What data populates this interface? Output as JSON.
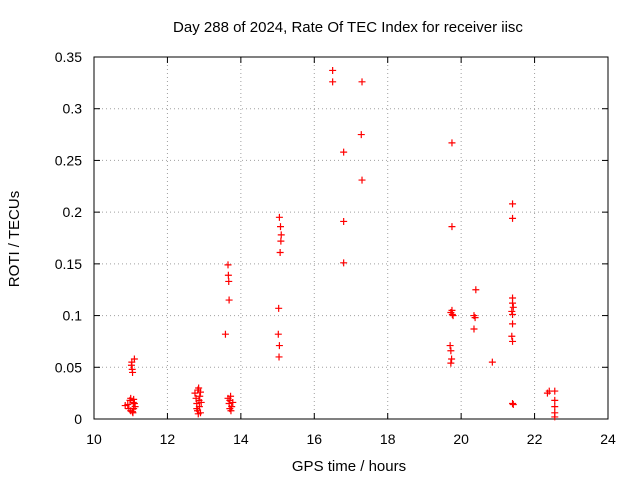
{
  "chart_data": {
    "type": "scatter",
    "title": "Day 288 of 2024, Rate Of TEC Index for receiver iisc",
    "xlabel": "GPS time / hours",
    "ylabel": "ROTI / TECUs",
    "xlim": [
      10,
      24
    ],
    "ylim": [
      0,
      0.35
    ],
    "grid": true,
    "marker": "+",
    "marker_color": "#ff0000",
    "x_ticks": [
      10,
      12,
      14,
      16,
      18,
      20,
      22,
      24
    ],
    "x_tick_labels": [
      "10",
      "12",
      "14",
      "16",
      "18",
      "20",
      "22",
      "24"
    ],
    "y_ticks": [
      0,
      0.05,
      0.1,
      0.15,
      0.2,
      0.25,
      0.3,
      0.35
    ],
    "y_tick_labels": [
      "0",
      "0.05",
      "0.1",
      "0.15",
      "0.2",
      "0.25",
      "0.3",
      "0.35"
    ],
    "series": [
      {
        "name": "ROTI",
        "points": [
          [
            10.85,
            0.013
          ],
          [
            10.92,
            0.014
          ],
          [
            10.95,
            0.01
          ],
          [
            10.98,
            0.018
          ],
          [
            11.0,
            0.02
          ],
          [
            11.0,
            0.008
          ],
          [
            11.02,
            0.052
          ],
          [
            11.04,
            0.048
          ],
          [
            11.05,
            0.045
          ],
          [
            11.06,
            0.006
          ],
          [
            11.07,
            0.016
          ],
          [
            11.08,
            0.01
          ],
          [
            11.03,
            0.055
          ],
          [
            11.1,
            0.058
          ],
          [
            11.1,
            0.015
          ],
          [
            11.12,
            0.012
          ],
          [
            11.05,
            0.007
          ],
          [
            11.08,
            0.019
          ],
          [
            12.75,
            0.025
          ],
          [
            12.78,
            0.02
          ],
          [
            12.8,
            0.015
          ],
          [
            12.8,
            0.01
          ],
          [
            12.82,
            0.008
          ],
          [
            12.83,
            0.028
          ],
          [
            12.85,
            0.03
          ],
          [
            12.86,
            0.018
          ],
          [
            12.87,
            0.012
          ],
          [
            12.88,
            0.022
          ],
          [
            12.9,
            0.026
          ],
          [
            12.9,
            0.006
          ],
          [
            12.92,
            0.016
          ],
          [
            12.84,
            0.005
          ],
          [
            13.58,
            0.082
          ],
          [
            13.65,
            0.149
          ],
          [
            13.66,
            0.139
          ],
          [
            13.67,
            0.133
          ],
          [
            13.68,
            0.115
          ],
          [
            13.65,
            0.02
          ],
          [
            13.68,
            0.015
          ],
          [
            13.7,
            0.01
          ],
          [
            13.72,
            0.022
          ],
          [
            13.7,
            0.018
          ],
          [
            13.75,
            0.012
          ],
          [
            13.73,
            0.008
          ],
          [
            13.78,
            0.016
          ],
          [
            15.05,
            0.195
          ],
          [
            15.08,
            0.186
          ],
          [
            15.1,
            0.178
          ],
          [
            15.09,
            0.172
          ],
          [
            15.07,
            0.161
          ],
          [
            15.03,
            0.107
          ],
          [
            15.02,
            0.082
          ],
          [
            15.05,
            0.071
          ],
          [
            15.04,
            0.06
          ],
          [
            16.5,
            0.337
          ],
          [
            16.5,
            0.326
          ],
          [
            17.3,
            0.326
          ],
          [
            17.28,
            0.275
          ],
          [
            16.8,
            0.258
          ],
          [
            17.3,
            0.231
          ],
          [
            16.8,
            0.191
          ],
          [
            16.8,
            0.151
          ],
          [
            19.75,
            0.267
          ],
          [
            19.75,
            0.186
          ],
          [
            19.72,
            0.103
          ],
          [
            19.75,
            0.105
          ],
          [
            19.78,
            0.1
          ],
          [
            19.76,
            0.101
          ],
          [
            19.7,
            0.071
          ],
          [
            19.72,
            0.066
          ],
          [
            19.74,
            0.058
          ],
          [
            19.72,
            0.054
          ],
          [
            20.4,
            0.125
          ],
          [
            20.35,
            0.1
          ],
          [
            20.38,
            0.098
          ],
          [
            20.35,
            0.087
          ],
          [
            20.85,
            0.055
          ],
          [
            21.4,
            0.208
          ],
          [
            21.4,
            0.194
          ],
          [
            21.4,
            0.117
          ],
          [
            21.4,
            0.112
          ],
          [
            21.42,
            0.108
          ],
          [
            21.38,
            0.104
          ],
          [
            21.4,
            0.101
          ],
          [
            21.4,
            0.092
          ],
          [
            21.38,
            0.08
          ],
          [
            21.4,
            0.075
          ],
          [
            21.4,
            0.015
          ],
          [
            21.42,
            0.014
          ],
          [
            22.35,
            0.025
          ],
          [
            22.4,
            0.027
          ],
          [
            22.55,
            0.027
          ],
          [
            22.55,
            0.018
          ],
          [
            22.55,
            0.012
          ],
          [
            22.55,
            0.006
          ],
          [
            22.55,
            0.002
          ]
        ]
      }
    ]
  }
}
